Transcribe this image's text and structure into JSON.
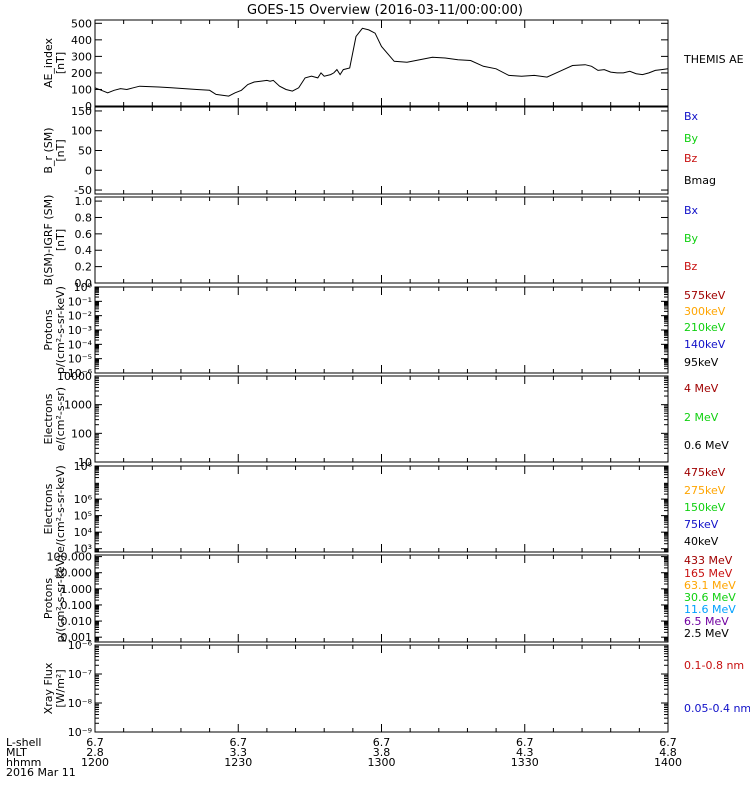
{
  "title": "GOES-15 Overview (2016-03-11/00:00:00)",
  "colors": {
    "blue": "#1010c8",
    "green": "#10d010",
    "red": "#c81010",
    "orange": "#ffa500",
    "darkred": "#a00000",
    "cyan": "#00a0ff",
    "purple": "#7000a0",
    "black": "#000000"
  },
  "xaxis": {
    "rows": [
      {
        "label": "L-shell",
        "values": [
          "6.7",
          "6.7",
          "6.7",
          "6.7",
          "6.7"
        ]
      },
      {
        "label": "MLT",
        "values": [
          "2.8",
          "3.3",
          "3.8",
          "4.3",
          "4.8"
        ]
      },
      {
        "label": "hhmm",
        "values": [
          "1200",
          "1230",
          "1300",
          "1330",
          "1400"
        ]
      }
    ],
    "date": "2016 Mar 11"
  },
  "chart_data": [
    {
      "type": "line",
      "ylabel": [
        "AE_index",
        "[nT]"
      ],
      "ylim": [
        0,
        520
      ],
      "yscale": "linear",
      "ticks": [
        {
          "v": 0,
          "t": "0"
        },
        {
          "v": 100,
          "t": "100"
        },
        {
          "v": 200,
          "t": "200"
        },
        {
          "v": 300,
          "t": "300"
        },
        {
          "v": 400,
          "t": "400"
        },
        {
          "v": 500,
          "t": "500"
        }
      ],
      "legend": [
        {
          "text": "THEMIS AE",
          "color": "black"
        }
      ],
      "series": [
        {
          "color": "black",
          "x": [
            0,
            2,
            4,
            6,
            8,
            10,
            12,
            14,
            16,
            20,
            24,
            28,
            32,
            36,
            38,
            40,
            42,
            44,
            46,
            48,
            50,
            52,
            54,
            55,
            56,
            58,
            60,
            62,
            64,
            66,
            68,
            70,
            71,
            72,
            74,
            75,
            76,
            77,
            78,
            80,
            82,
            84,
            86,
            88,
            90,
            94,
            98,
            102,
            106,
            110,
            114,
            118,
            122,
            126,
            130,
            134,
            138,
            142,
            146,
            150,
            154,
            156,
            158,
            160,
            162,
            164,
            166,
            168,
            170,
            172,
            174,
            176,
            178,
            180
          ],
          "y": [
            110,
            95,
            80,
            95,
            105,
            100,
            110,
            120,
            118,
            115,
            110,
            105,
            100,
            95,
            70,
            65,
            60,
            80,
            95,
            130,
            145,
            150,
            155,
            150,
            155,
            120,
            100,
            90,
            110,
            170,
            180,
            170,
            200,
            180,
            190,
            200,
            220,
            190,
            220,
            230,
            420,
            470,
            460,
            440,
            360,
            270,
            265,
            280,
            295,
            290,
            280,
            275,
            240,
            225,
            185,
            180,
            185,
            175,
            210,
            245,
            250,
            240,
            215,
            220,
            205,
            200,
            200,
            210,
            195,
            190,
            200,
            215,
            220,
            225
          ]
        }
      ]
    },
    {
      "type": "line",
      "ylabel": [
        "B_r (SM)",
        "[nT]"
      ],
      "ylim": [
        -60,
        160
      ],
      "yscale": "linear",
      "ticks": [
        {
          "v": -50,
          "t": "-50"
        },
        {
          "v": 0,
          "t": "0"
        },
        {
          "v": 50,
          "t": "50"
        },
        {
          "v": 100,
          "t": "100"
        },
        {
          "v": 150,
          "t": "150"
        }
      ],
      "legend": [
        {
          "text": "Bx",
          "color": "blue"
        },
        {
          "text": "By",
          "color": "green"
        },
        {
          "text": "Bz",
          "color": "red"
        },
        {
          "text": "Bmag",
          "color": "black"
        }
      ]
    },
    {
      "type": "line",
      "ylabel": [
        "B(SM)-IGRF (SM)",
        "[nT]"
      ],
      "ylim": [
        0,
        1.05
      ],
      "yscale": "linear",
      "ticks": [
        {
          "v": 0,
          "t": "0.0"
        },
        {
          "v": 0.2,
          "t": "0.2"
        },
        {
          "v": 0.4,
          "t": "0.4"
        },
        {
          "v": 0.6,
          "t": "0.6"
        },
        {
          "v": 0.8,
          "t": "0.8"
        },
        {
          "v": 1.0,
          "t": "1.0"
        }
      ],
      "legend": [
        {
          "text": "Bx",
          "color": "blue"
        },
        {
          "text": "By",
          "color": "green"
        },
        {
          "text": "Bz",
          "color": "red"
        }
      ]
    },
    {
      "type": "line",
      "ylabel": [
        "Protons",
        "p/(cm²-s-sr-keV)"
      ],
      "ylim": [
        -6,
        0
      ],
      "yscale": "log",
      "ticks": [
        {
          "v": -6,
          "t": "10⁻⁶"
        },
        {
          "v": -5,
          "t": "10⁻⁵"
        },
        {
          "v": -4,
          "t": "10⁻⁴"
        },
        {
          "v": -3,
          "t": "10⁻³"
        },
        {
          "v": -2,
          "t": "10⁻²"
        },
        {
          "v": -1,
          "t": "10⁻¹"
        },
        {
          "v": 0,
          "t": "10⁰"
        }
      ],
      "legend": [
        {
          "text": "575keV",
          "color": "darkred"
        },
        {
          "text": "300keV",
          "color": "orange"
        },
        {
          "text": "210keV",
          "color": "green"
        },
        {
          "text": "140keV",
          "color": "blue"
        },
        {
          "text": "95keV",
          "color": "black"
        }
      ]
    },
    {
      "type": "line",
      "ylabel": [
        "Electrons",
        "e/(cm²-s-sr)"
      ],
      "ylim": [
        1,
        4
      ],
      "yscale": "log",
      "ticks": [
        {
          "v": 1,
          "t": "10"
        },
        {
          "v": 2,
          "t": "100"
        },
        {
          "v": 3,
          "t": "1000"
        },
        {
          "v": 4,
          "t": "10000"
        }
      ],
      "legend": [
        {
          "text": "4 MeV",
          "color": "darkred"
        },
        {
          "text": "2 MeV",
          "color": "green"
        },
        {
          "text": "0.6 MeV",
          "color": "black"
        }
      ]
    },
    {
      "type": "line",
      "ylabel": [
        "Electrons",
        "e/(cm²-s-sr-keV)"
      ],
      "ylim": [
        2.8,
        8
      ],
      "yscale": "log",
      "ticks": [
        {
          "v": 3,
          "t": "10³"
        },
        {
          "v": 4,
          "t": "10⁴"
        },
        {
          "v": 5,
          "t": "10⁵"
        },
        {
          "v": 6,
          "t": "10⁶"
        },
        {
          "v": 8,
          "t": "10⁸"
        }
      ],
      "legend": [
        {
          "text": "475keV",
          "color": "darkred"
        },
        {
          "text": "275keV",
          "color": "orange"
        },
        {
          "text": "150keV",
          "color": "green"
        },
        {
          "text": "75keV",
          "color": "blue"
        },
        {
          "text": "40keV",
          "color": "black"
        }
      ]
    },
    {
      "type": "line",
      "ylabel": [
        "Protons",
        "p/(cm²-s-sr-keV)"
      ],
      "ylim": [
        -3.3,
        2.1
      ],
      "yscale": "log",
      "ticks": [
        {
          "v": -3,
          "t": "0.001"
        },
        {
          "v": -2,
          "t": "0.010"
        },
        {
          "v": -1,
          "t": "0.100"
        },
        {
          "v": 0,
          "t": "1.000"
        },
        {
          "v": 1,
          "t": "10.000"
        },
        {
          "v": 2,
          "t": "100.000"
        }
      ],
      "legend": [
        {
          "text": "433 MeV",
          "color": "darkred"
        },
        {
          "text": "165 MeV",
          "color": "red"
        },
        {
          "text": "63.1 MeV",
          "color": "orange"
        },
        {
          "text": "30.6 MeV",
          "color": "green"
        },
        {
          "text": "11.6 MeV",
          "color": "cyan"
        },
        {
          "text": "6.5 MeV",
          "color": "purple"
        },
        {
          "text": "2.5 MeV",
          "color": "black"
        }
      ]
    },
    {
      "type": "line",
      "ylabel": [
        "Xray Flux",
        "[W/m²]"
      ],
      "ylim": [
        -9,
        -6
      ],
      "yscale": "log",
      "ticks": [
        {
          "v": -9,
          "t": "10⁻⁹"
        },
        {
          "v": -8,
          "t": "10⁻⁸"
        },
        {
          "v": -7,
          "t": "10⁻⁷"
        },
        {
          "v": -6,
          "t": "10⁻⁶"
        }
      ],
      "legend": [
        {
          "text": "0.1-0.8 nm",
          "color": "red"
        },
        {
          "text": "0.05-0.4 nm",
          "color": "blue"
        }
      ]
    }
  ]
}
